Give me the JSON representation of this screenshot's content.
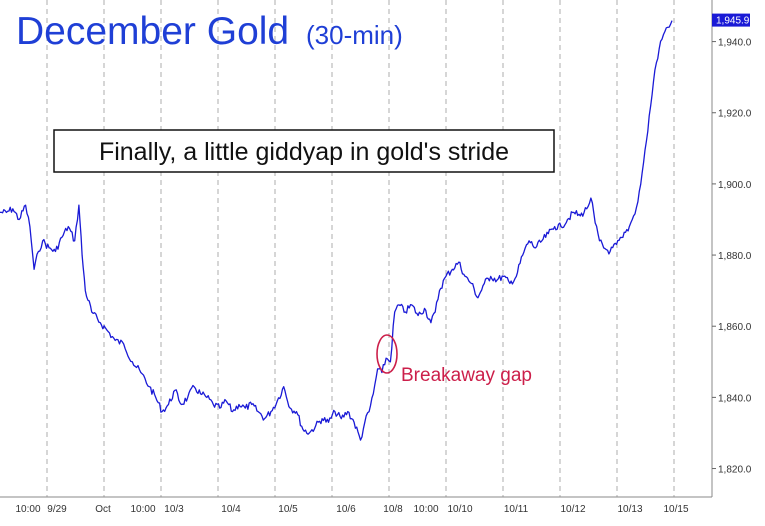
{
  "chart_data": {
    "type": "line",
    "title": "December Gold",
    "subtitle": "(30-min)",
    "annotation": "Finally, a little giddyap in gold's stride",
    "gap_label": "Breakaway gap",
    "last_price_label": "1,945.9",
    "y_axis_side": "right",
    "ylim": [
      1812,
      1950
    ],
    "y_ticks": [
      {
        "value": 1820,
        "label": "1,820.0"
      },
      {
        "value": 1840,
        "label": "1,840.0"
      },
      {
        "value": 1860,
        "label": "1,860.0"
      },
      {
        "value": 1880,
        "label": "1,880.0"
      },
      {
        "value": 1900,
        "label": "1,900.0"
      },
      {
        "value": 1920,
        "label": "1,920.0"
      },
      {
        "value": 1940,
        "label": "1,940.0"
      }
    ],
    "x_ticks": [
      "10:00",
      "9/29",
      "Oct",
      "10:00",
      "10/3",
      "10/4",
      "10/5",
      "10/6",
      "10/8",
      "10:00",
      "10/10",
      "10/11",
      "10/12",
      "10/13",
      "10/15"
    ],
    "grid": "vertical dashed",
    "colors": {
      "line": "#1a1ad6",
      "title": "#1f3fd6",
      "gap": "#cc1f4a",
      "grid": "#9a9a9a"
    },
    "series": [
      {
        "values": [
          {
            "x": 0.0,
            "y": 1892
          },
          {
            "x": 0.3,
            "y": 1892
          },
          {
            "x": 0.6,
            "y": 1893
          },
          {
            "x": 0.9,
            "y": 1890
          },
          {
            "x": 1.2,
            "y": 1894
          },
          {
            "x": 1.4,
            "y": 1888
          },
          {
            "x": 1.6,
            "y": 1876
          },
          {
            "x": 1.8,
            "y": 1881
          },
          {
            "x": 2.0,
            "y": 1884
          },
          {
            "x": 2.3,
            "y": 1882
          },
          {
            "x": 2.6,
            "y": 1881
          },
          {
            "x": 2.9,
            "y": 1885
          },
          {
            "x": 3.2,
            "y": 1888
          },
          {
            "x": 3.5,
            "y": 1884
          },
          {
            "x": 3.7,
            "y": 1894
          },
          {
            "x": 3.85,
            "y": 1880
          },
          {
            "x": 4.0,
            "y": 1870
          },
          {
            "x": 4.3,
            "y": 1864
          },
          {
            "x": 4.7,
            "y": 1861
          },
          {
            "x": 5.0,
            "y": 1859
          },
          {
            "x": 5.4,
            "y": 1856
          },
          {
            "x": 5.8,
            "y": 1855
          },
          {
            "x": 6.2,
            "y": 1850
          },
          {
            "x": 6.6,
            "y": 1847
          },
          {
            "x": 7.0,
            "y": 1843
          },
          {
            "x": 7.3,
            "y": 1840
          },
          {
            "x": 7.6,
            "y": 1836
          },
          {
            "x": 7.9,
            "y": 1838
          },
          {
            "x": 8.2,
            "y": 1842
          },
          {
            "x": 8.5,
            "y": 1838
          },
          {
            "x": 8.8,
            "y": 1840
          },
          {
            "x": 9.1,
            "y": 1843
          },
          {
            "x": 9.4,
            "y": 1841
          },
          {
            "x": 9.7,
            "y": 1840
          },
          {
            "x": 10.0,
            "y": 1838
          },
          {
            "x": 10.3,
            "y": 1837
          },
          {
            "x": 10.6,
            "y": 1839
          },
          {
            "x": 10.9,
            "y": 1836
          },
          {
            "x": 11.2,
            "y": 1838
          },
          {
            "x": 11.5,
            "y": 1837
          },
          {
            "x": 11.8,
            "y": 1838
          },
          {
            "x": 12.1,
            "y": 1836
          },
          {
            "x": 12.4,
            "y": 1834
          },
          {
            "x": 12.7,
            "y": 1836
          },
          {
            "x": 13.0,
            "y": 1839
          },
          {
            "x": 13.3,
            "y": 1843
          },
          {
            "x": 13.6,
            "y": 1837
          },
          {
            "x": 13.9,
            "y": 1836
          },
          {
            "x": 14.2,
            "y": 1831
          },
          {
            "x": 14.5,
            "y": 1830
          },
          {
            "x": 14.8,
            "y": 1832
          },
          {
            "x": 15.1,
            "y": 1834
          },
          {
            "x": 15.4,
            "y": 1833
          },
          {
            "x": 15.7,
            "y": 1836
          },
          {
            "x": 16.0,
            "y": 1834
          },
          {
            "x": 16.3,
            "y": 1836
          },
          {
            "x": 16.6,
            "y": 1833
          },
          {
            "x": 16.9,
            "y": 1828
          },
          {
            "x": 17.1,
            "y": 1833
          },
          {
            "x": 17.3,
            "y": 1836
          },
          {
            "x": 17.5,
            "y": 1841
          },
          {
            "x": 17.7,
            "y": 1848
          },
          {
            "x": 17.9,
            "y": 1847
          },
          {
            "x": 18.1,
            "y": 1851
          },
          {
            "x": 18.3,
            "y": 1850
          },
          {
            "x": 18.5,
            "y": 1864
          },
          {
            "x": 18.7,
            "y": 1866
          },
          {
            "x": 19.0,
            "y": 1864
          },
          {
            "x": 19.3,
            "y": 1866
          },
          {
            "x": 19.6,
            "y": 1863
          },
          {
            "x": 19.9,
            "y": 1865
          },
          {
            "x": 20.2,
            "y": 1861
          },
          {
            "x": 20.4,
            "y": 1864
          },
          {
            "x": 20.6,
            "y": 1870
          },
          {
            "x": 20.9,
            "y": 1874
          },
          {
            "x": 21.2,
            "y": 1876
          },
          {
            "x": 21.5,
            "y": 1878
          },
          {
            "x": 21.8,
            "y": 1874
          },
          {
            "x": 22.1,
            "y": 1872
          },
          {
            "x": 22.4,
            "y": 1868
          },
          {
            "x": 22.7,
            "y": 1872
          },
          {
            "x": 23.0,
            "y": 1874
          },
          {
            "x": 23.3,
            "y": 1873
          },
          {
            "x": 23.6,
            "y": 1874
          },
          {
            "x": 23.9,
            "y": 1872
          },
          {
            "x": 24.2,
            "y": 1874
          },
          {
            "x": 24.5,
            "y": 1880
          },
          {
            "x": 24.8,
            "y": 1884
          },
          {
            "x": 25.1,
            "y": 1882
          },
          {
            "x": 25.4,
            "y": 1884
          },
          {
            "x": 25.7,
            "y": 1886
          },
          {
            "x": 26.0,
            "y": 1888
          },
          {
            "x": 26.3,
            "y": 1888
          },
          {
            "x": 26.6,
            "y": 1890
          },
          {
            "x": 26.9,
            "y": 1892
          },
          {
            "x": 27.2,
            "y": 1891
          },
          {
            "x": 27.5,
            "y": 1893
          },
          {
            "x": 27.7,
            "y": 1896
          },
          {
            "x": 27.9,
            "y": 1889
          },
          {
            "x": 28.1,
            "y": 1884
          },
          {
            "x": 28.3,
            "y": 1882
          },
          {
            "x": 28.6,
            "y": 1881
          },
          {
            "x": 28.9,
            "y": 1883
          },
          {
            "x": 29.2,
            "y": 1885
          },
          {
            "x": 29.5,
            "y": 1888
          },
          {
            "x": 29.7,
            "y": 1891
          },
          {
            "x": 29.9,
            "y": 1895
          },
          {
            "x": 30.1,
            "y": 1903
          },
          {
            "x": 30.3,
            "y": 1912
          },
          {
            "x": 30.5,
            "y": 1922
          },
          {
            "x": 30.7,
            "y": 1932
          },
          {
            "x": 30.9,
            "y": 1938
          },
          {
            "x": 31.1,
            "y": 1942
          },
          {
            "x": 31.3,
            "y": 1944
          },
          {
            "x": 31.5,
            "y": 1945.9
          }
        ]
      }
    ]
  }
}
